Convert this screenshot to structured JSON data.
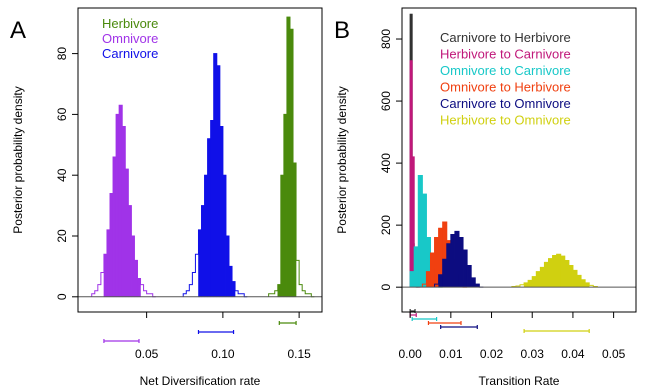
{
  "figure": {
    "panel_a_letter": "A",
    "panel_b_letter": "B"
  },
  "chart_data": [
    {
      "panel": "A",
      "type": "bar",
      "subtype": "histogram",
      "xlabel": "Net Diversification rate",
      "ylabel": "Posterior probability density",
      "xlim": [
        0.005,
        0.165
      ],
      "ylim": [
        -5,
        95
      ],
      "xticks": [
        0.05,
        0.1,
        0.15
      ],
      "xtick_labels": [
        "0.05",
        "0.10",
        "0.15"
      ],
      "yticks": [
        0,
        20,
        40,
        60,
        80
      ],
      "ytick_labels": [
        "0",
        "20",
        "40",
        "60",
        "80"
      ],
      "grid": false,
      "legend": "top-left",
      "series": [
        {
          "name": "Herbivore",
          "color": "#4a8a0c",
          "bin_edges": [
            0.13,
            0.132,
            0.134,
            0.136,
            0.138,
            0.14,
            0.142,
            0.144,
            0.146,
            0.148,
            0.15,
            0.152,
            0.154,
            0.156,
            0.158,
            0.16
          ],
          "values": [
            1,
            1,
            2,
            4,
            40,
            60,
            92,
            88,
            44,
            12,
            4,
            2,
            1,
            1,
            0
          ],
          "interval": [
            0.137,
            0.148
          ]
        },
        {
          "name": "Omnivore",
          "color": "#a033e8",
          "bin_edges": [
            0.014,
            0.016,
            0.018,
            0.02,
            0.022,
            0.024,
            0.026,
            0.028,
            0.03,
            0.032,
            0.034,
            0.036,
            0.038,
            0.04,
            0.042,
            0.044,
            0.046,
            0.048,
            0.05,
            0.052,
            0.054,
            0.056
          ],
          "values": [
            1,
            2,
            4,
            8,
            14,
            22,
            34,
            46,
            60,
            63,
            56,
            42,
            30,
            20,
            12,
            6,
            4,
            2,
            1,
            1,
            0
          ],
          "interval": [
            0.022,
            0.045
          ]
        },
        {
          "name": "Carnivore",
          "color": "#1010e8",
          "bin_edges": [
            0.074,
            0.076,
            0.078,
            0.08,
            0.082,
            0.084,
            0.086,
            0.088,
            0.09,
            0.092,
            0.094,
            0.096,
            0.098,
            0.1,
            0.102,
            0.104,
            0.106,
            0.108,
            0.11,
            0.112,
            0.114,
            0.116
          ],
          "values": [
            1,
            2,
            4,
            8,
            14,
            22,
            30,
            40,
            52,
            58,
            80,
            76,
            56,
            40,
            20,
            10,
            5,
            2,
            1,
            1,
            0
          ],
          "interval": [
            0.084,
            0.107
          ]
        }
      ]
    },
    {
      "panel": "B",
      "type": "bar",
      "subtype": "histogram",
      "xlabel": "Transition Rate",
      "ylabel": "Posterior probability density",
      "xlim": [
        -0.002,
        0.0555
      ],
      "ylim": [
        -80,
        900
      ],
      "xticks": [
        0.0,
        0.01,
        0.02,
        0.03,
        0.04,
        0.05
      ],
      "xtick_labels": [
        "0.00",
        "0.01",
        "0.02",
        "0.03",
        "0.04",
        "0.05"
      ],
      "yticks": [
        0,
        200,
        400,
        600,
        800
      ],
      "ytick_labels": [
        "0",
        "200",
        "400",
        "600",
        "800"
      ],
      "grid": false,
      "legend": "top-right",
      "series": [
        {
          "name": "Carnivore to Herbivore",
          "color": "#333333",
          "bin_edges": [
            0.0,
            0.0005,
            0.001,
            0.0015,
            0.002
          ],
          "values": [
            880,
            140,
            20,
            0
          ],
          "interval": [
            0.0,
            0.0012
          ]
        },
        {
          "name": "Herbivore to Carnivore",
          "color": "#c0187a",
          "bin_edges": [
            0.0,
            0.0005,
            0.001,
            0.0015,
            0.002,
            0.0025
          ],
          "values": [
            730,
            420,
            80,
            10,
            0
          ],
          "interval": [
            0.0,
            0.0015
          ]
        },
        {
          "name": "Omnivore to Carnivore",
          "color": "#18c8c8",
          "bin_edges": [
            0.0,
            0.001,
            0.002,
            0.003,
            0.004,
            0.005,
            0.006,
            0.007,
            0.008
          ],
          "values": [
            50,
            130,
            360,
            300,
            160,
            60,
            15,
            0
          ],
          "interval": [
            0.0005,
            0.0065
          ]
        },
        {
          "name": "Omnivore to Herbivore",
          "color": "#f04010",
          "bin_edges": [
            0.003,
            0.004,
            0.005,
            0.006,
            0.007,
            0.008,
            0.009,
            0.01,
            0.011,
            0.012,
            0.013,
            0.014
          ],
          "values": [
            10,
            50,
            110,
            160,
            190,
            210,
            150,
            90,
            40,
            15,
            0
          ],
          "interval": [
            0.0045,
            0.0125
          ]
        },
        {
          "name": "Carnivore to Omnivore",
          "color": "#0c0c80",
          "bin_edges": [
            0.006,
            0.007,
            0.008,
            0.009,
            0.01,
            0.011,
            0.012,
            0.013,
            0.014,
            0.015,
            0.016,
            0.017,
            0.018
          ],
          "values": [
            10,
            40,
            90,
            140,
            170,
            180,
            160,
            120,
            70,
            30,
            10,
            0
          ],
          "interval": [
            0.0075,
            0.0165
          ]
        },
        {
          "name": "Herbivore to Omnivore",
          "color": "#d0d010",
          "bin_edges": [
            0.025,
            0.026,
            0.027,
            0.028,
            0.029,
            0.03,
            0.031,
            0.032,
            0.033,
            0.034,
            0.035,
            0.036,
            0.037,
            0.038,
            0.039,
            0.04,
            0.041,
            0.042,
            0.043,
            0.044,
            0.045,
            0.046
          ],
          "values": [
            2,
            4,
            8,
            14,
            22,
            34,
            50,
            64,
            80,
            92,
            102,
            106,
            100,
            86,
            70,
            54,
            38,
            24,
            14,
            6,
            2,
            0
          ],
          "interval": [
            0.028,
            0.044
          ]
        }
      ]
    }
  ]
}
